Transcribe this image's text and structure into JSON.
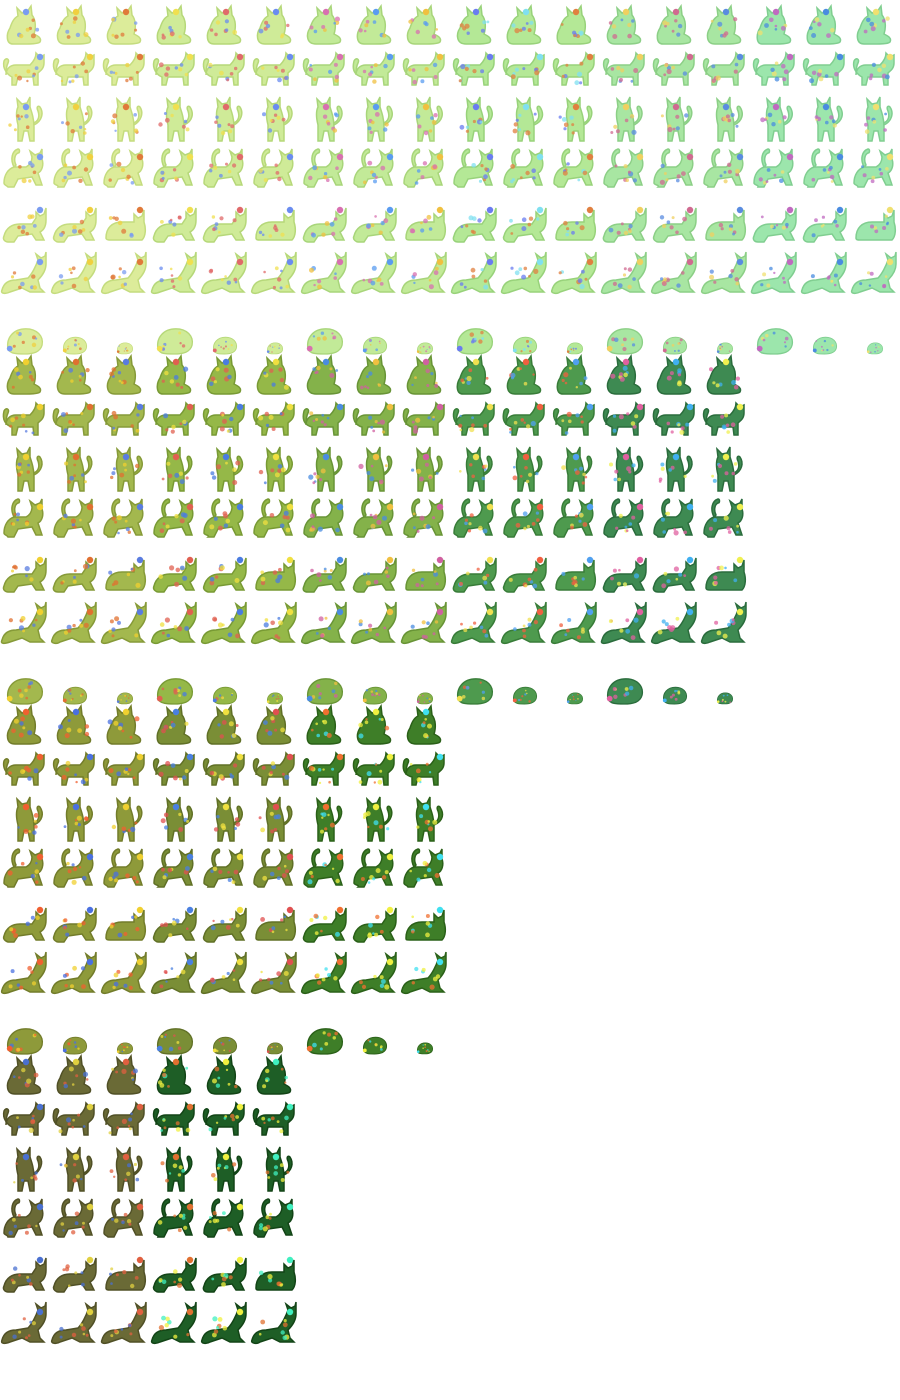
{
  "sheet": {
    "name": "cat-sprite-sheet",
    "background": "#ffffff",
    "poses": [
      "sit-a",
      "sit-b",
      "sit-c",
      "stand-a",
      "stand-b",
      "stand-c",
      "look-a",
      "look-b",
      "look-c",
      "stretch-a",
      "stretch-b",
      "stretch-c",
      "crouch-a",
      "crouch-b",
      "loaf",
      "lie-a",
      "lie-b",
      "lie-c",
      "curl-large",
      "curl-medium",
      "curl-small"
    ],
    "sections": [
      {
        "id": "light",
        "tints": [
          {
            "body": "#dcec9a",
            "shade": "#c4dc7e",
            "spots": [
              "#e07a3a",
              "#7a9cf0",
              "#f0d040"
            ]
          },
          {
            "body": "#cfeb98",
            "shade": "#b6d879",
            "spots": [
              "#e06a6a",
              "#6a8cf0",
              "#f0e050"
            ]
          },
          {
            "body": "#c2ea98",
            "shade": "#a8d57a",
            "spots": [
              "#d870b0",
              "#5a9cf0",
              "#f0c040"
            ]
          },
          {
            "body": "#b4e896",
            "shade": "#98d27a",
            "spots": [
              "#e08040",
              "#6a7cf0",
              "#80e0f0"
            ]
          },
          {
            "body": "#a8e6a2",
            "shade": "#8ccf86",
            "spots": [
              "#d06a90",
              "#5a8ce0",
              "#f0d060"
            ]
          },
          {
            "body": "#9ce6ac",
            "shade": "#80ce90",
            "spots": [
              "#c06ac0",
              "#4a8ce0",
              "#f0e070"
            ]
          },
          {
            "body": "#22e090",
            "shade": "#10c070",
            "spots": [
              "#60a0f0",
              "#f0f060",
              "#40f0c0"
            ]
          }
        ]
      },
      {
        "id": "mid",
        "tints": [
          {
            "body": "#a3b84e",
            "shade": "#869a38",
            "spots": [
              "#e07030",
              "#5a7ce0",
              "#f0d030"
            ]
          },
          {
            "body": "#95b848",
            "shade": "#789a34",
            "spots": [
              "#e06050",
              "#4a7ce0",
              "#f0e040"
            ]
          },
          {
            "body": "#84b24a",
            "shade": "#689436",
            "spots": [
              "#d060a0",
              "#4a8ce0",
              "#f0c040"
            ]
          },
          {
            "body": "#4e9a4e",
            "shade": "#387c38",
            "spots": [
              "#f06040",
              "#50a0f0",
              "#f0e050"
            ]
          },
          {
            "body": "#3e8a52",
            "shade": "#2a6c3c",
            "spots": [
              "#e060a0",
              "#40b0f0",
              "#f0f050"
            ]
          }
        ]
      },
      {
        "id": "dark",
        "tints": [
          {
            "body": "#8e9a3a",
            "shade": "#727c2a",
            "spots": [
              "#f06030",
              "#4a70e0",
              "#f0d030"
            ]
          },
          {
            "body": "#7a8e36",
            "shade": "#607026",
            "spots": [
              "#e05050",
              "#4a80e0",
              "#f0e040"
            ]
          },
          {
            "body": "#3e7e28",
            "shade": "#2a6018",
            "spots": [
              "#f0f040",
              "#40e0f0",
              "#f07030"
            ]
          }
        ]
      },
      {
        "id": "darkest",
        "tints": [
          {
            "body": "#6a6a36",
            "shade": "#505026",
            "spots": [
              "#e06040",
              "#4a70d0",
              "#e0d040"
            ]
          },
          {
            "body": "#1e5e26",
            "shade": "#124416",
            "spots": [
              "#f0f040",
              "#40f0c0",
              "#e07030"
            ]
          }
        ]
      }
    ]
  }
}
